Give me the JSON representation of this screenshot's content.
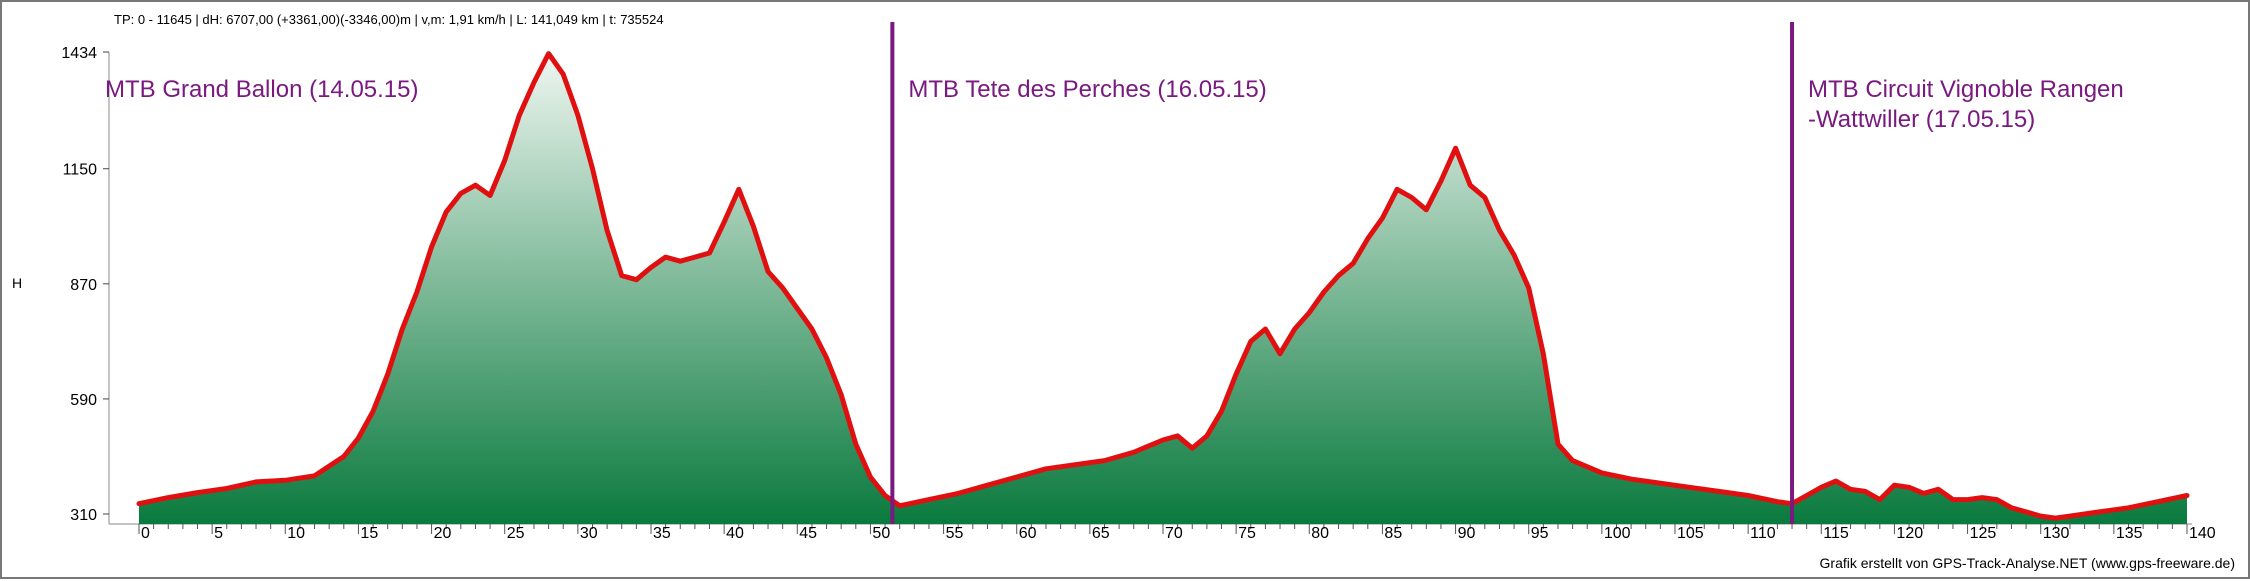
{
  "header": {
    "stats": "TP: 0 - 11645 | dH: 6707,00  (+3361,00)(-3346,00)m | v,m: 1,91 km/h | L: 141,049 km | t: 735524"
  },
  "footer": {
    "credit": "Grafik erstellt von GPS-Track-Analyse.NET (www.gps-freeware.de)"
  },
  "colors": {
    "line": "#e01010",
    "fill_top": "#eef6f0",
    "fill_bottom": "#0a7a3e",
    "marker": "#7a1a80",
    "label": "#7a1a80"
  },
  "chart_data": {
    "type": "area",
    "title": "",
    "xlabel": "",
    "ylabel": "H",
    "xlim": [
      0,
      140
    ],
    "ylim": [
      310,
      1434
    ],
    "x_ticks": [
      0,
      5,
      10,
      15,
      20,
      25,
      30,
      35,
      40,
      45,
      50,
      55,
      60,
      65,
      70,
      75,
      80,
      85,
      90,
      95,
      100,
      105,
      110,
      115,
      120,
      125,
      130,
      135,
      140
    ],
    "y_ticks": [
      "310",
      "590",
      "870",
      "1150",
      "1434"
    ],
    "grid": false,
    "segments": [
      {
        "label": "MTB Grand Ballon (14.05.15)",
        "x": 0
      },
      {
        "label": "MTB Tete des Perches (16.05.15)",
        "x": 51.5
      },
      {
        "label": "MTB Circuit Vignoble Rangen\n-Wattwiller (17.05.15)",
        "x": 113
      }
    ],
    "series": [
      {
        "x": [
          0,
          2,
          4,
          6,
          8,
          10,
          12,
          14,
          15,
          16,
          17,
          18,
          19,
          20,
          21,
          22,
          23,
          24,
          25,
          26,
          27,
          28,
          29,
          30,
          31,
          32,
          33,
          34,
          35,
          36,
          37,
          38,
          39,
          40,
          41,
          42,
          43,
          44,
          45,
          46,
          47,
          48,
          49,
          50,
          51,
          52,
          54,
          56,
          58,
          60,
          62,
          64,
          66,
          68,
          70,
          71,
          72,
          73,
          74,
          75,
          76,
          77,
          78,
          79,
          80,
          81,
          82,
          83,
          84,
          85,
          86,
          87,
          88,
          89,
          90,
          91,
          92,
          93,
          94,
          95,
          96,
          97,
          98,
          100,
          102,
          104,
          106,
          108,
          110,
          112,
          113,
          114,
          115,
          116,
          117,
          118,
          119,
          120,
          121,
          122,
          123,
          124,
          125,
          126,
          127,
          128,
          129,
          130,
          131,
          132,
          134,
          136,
          138,
          140
        ],
        "y": [
          335,
          350,
          362,
          372,
          388,
          392,
          403,
          450,
          495,
          560,
          650,
          760,
          850,
          960,
          1045,
          1090,
          1110,
          1085,
          1170,
          1280,
          1360,
          1430,
          1380,
          1280,
          1150,
          1000,
          890,
          880,
          910,
          935,
          925,
          935,
          945,
          1020,
          1100,
          1010,
          900,
          860,
          810,
          760,
          690,
          600,
          480,
          400,
          355,
          330,
          345,
          360,
          380,
          400,
          420,
          430,
          440,
          460,
          490,
          500,
          470,
          500,
          560,
          650,
          730,
          760,
          700,
          760,
          800,
          850,
          890,
          920,
          980,
          1030,
          1100,
          1080,
          1050,
          1120,
          1200,
          1110,
          1080,
          1000,
          940,
          860,
          700,
          480,
          440,
          410,
          395,
          385,
          375,
          365,
          355,
          340,
          335,
          355,
          375,
          390,
          370,
          365,
          345,
          380,
          375,
          360,
          370,
          345,
          345,
          350,
          345,
          325,
          315,
          305,
          300,
          305,
          315,
          325,
          340,
          355
        ]
      }
    ]
  }
}
